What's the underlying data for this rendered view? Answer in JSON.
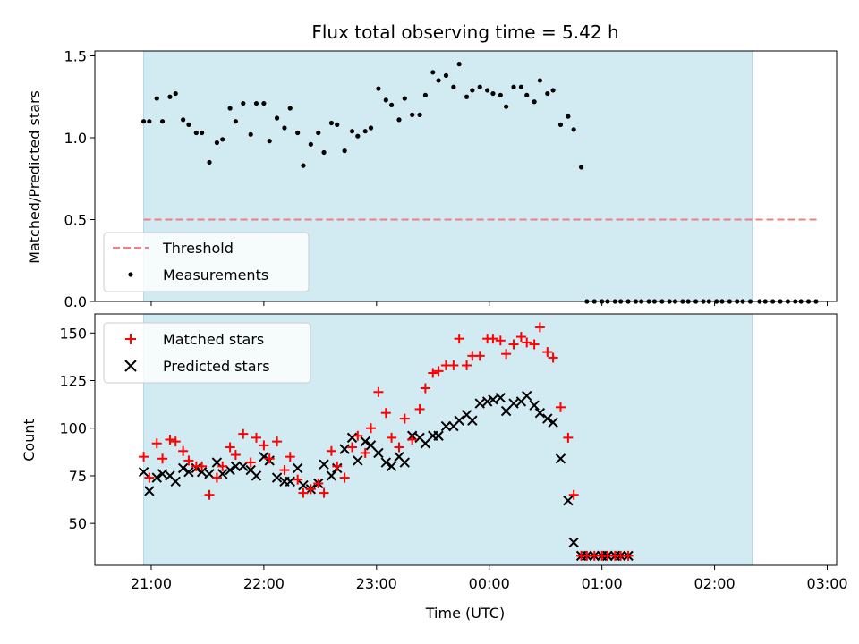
{
  "chart_data": {
    "title": "Flux total observing time = 5.42 h",
    "xlabel": "Time (UTC)",
    "x_unit": "UTC, 2-minute step series from 20:56",
    "xticks": [
      "21:00",
      "22:00",
      "23:00",
      "00:00",
      "01:00",
      "02:00",
      "03:00"
    ],
    "shaded_span": {
      "start": "20:56",
      "end": "02:20",
      "color": "#add8e6"
    },
    "panels": [
      {
        "type": "scatter",
        "ylabel": "Matched/Predicted stars",
        "ylim": [
          0,
          1.53
        ],
        "yticks": [
          "0.0",
          "0.5",
          "1.0",
          "1.5"
        ],
        "grid": false,
        "legend": "lower-left",
        "threshold": {
          "name": "Threshold",
          "value": 0.5,
          "x_start": "20:56",
          "x_end": "02:56",
          "color": "#f08080"
        },
        "series": [
          {
            "name": "Measurements",
            "color": "#000000",
            "x": [
              "20:56",
              "20:59",
              "21:03",
              "21:06",
              "21:10",
              "21:13",
              "21:17",
              "21:20",
              "21:24",
              "21:27",
              "21:31",
              "21:35",
              "21:38",
              "21:42",
              "21:45",
              "21:49",
              "21:53",
              "21:56",
              "22:00",
              "22:03",
              "22:07",
              "22:11",
              "22:14",
              "22:18",
              "22:21",
              "22:25",
              "22:29",
              "22:32",
              "22:36",
              "22:39",
              "22:43",
              "22:47",
              "22:50",
              "22:54",
              "22:57",
              "23:01",
              "23:05",
              "23:08",
              "23:12",
              "23:15",
              "23:19",
              "23:23",
              "23:26",
              "23:30",
              "23:33",
              "23:37",
              "23:41",
              "23:44",
              "23:48",
              "23:51",
              "23:55",
              "23:59",
              "00:02",
              "00:06",
              "00:09",
              "00:13",
              "00:17",
              "00:20",
              "00:24",
              "00:27",
              "00:31",
              "00:34",
              "00:38",
              "00:42",
              "00:45",
              "00:49",
              "00:52",
              "00:56",
              "01:00",
              "01:03",
              "01:07",
              "01:10",
              "01:14",
              "01:18",
              "01:21",
              "01:25",
              "01:28",
              "01:32",
              "01:36",
              "01:39",
              "01:43",
              "01:46",
              "01:50",
              "01:54",
              "01:57",
              "02:01",
              "02:04",
              "02:08",
              "02:12",
              "02:15",
              "02:19",
              "02:24",
              "02:27",
              "02:31",
              "02:35",
              "02:39",
              "02:43",
              "02:46",
              "02:50",
              "02:54"
            ],
            "y": [
              1.1,
              1.1,
              1.24,
              1.1,
              1.25,
              1.27,
              1.11,
              1.08,
              1.03,
              1.03,
              0.85,
              0.97,
              0.99,
              1.18,
              1.1,
              1.21,
              1.02,
              1.21,
              1.21,
              0.98,
              1.12,
              1.06,
              1.18,
              1.03,
              0.83,
              0.96,
              1.03,
              0.91,
              1.09,
              1.08,
              0.92,
              1.04,
              1.01,
              1.04,
              1.06,
              1.3,
              1.23,
              1.2,
              1.11,
              1.24,
              1.14,
              1.14,
              1.26,
              1.4,
              1.35,
              1.38,
              1.31,
              1.45,
              1.25,
              1.29,
              1.31,
              1.29,
              1.27,
              1.26,
              1.19,
              1.31,
              1.31,
              1.26,
              1.22,
              1.35,
              1.27,
              1.29,
              1.08,
              1.13,
              1.05,
              0.82,
              0,
              0,
              0,
              0,
              0,
              0,
              0,
              0,
              0,
              0,
              0,
              0,
              0,
              0,
              0,
              0,
              0,
              0,
              0,
              0,
              0,
              0,
              0,
              0,
              0,
              0,
              0,
              0,
              0,
              0,
              0,
              0,
              0,
              0
            ]
          }
        ]
      },
      {
        "type": "scatter",
        "ylabel": "Count",
        "ylim": [
          28,
          160
        ],
        "yticks": [
          "50",
          "75",
          "100",
          "125",
          "150"
        ],
        "grid": false,
        "legend": "upper-left",
        "series": [
          {
            "name": "Matched stars",
            "marker": "plus",
            "color": "#ff0000",
            "y": [
              85,
              74,
              92,
              84,
              94,
              93,
              88,
              83,
              80,
              80,
              65,
              74,
              80,
              90,
              86,
              97,
              82,
              95,
              91,
              84,
              93,
              78,
              85,
              73,
              66,
              68,
              71,
              66,
              88,
              80,
              74,
              90,
              96,
              87,
              100,
              119,
              108,
              95,
              90,
              105,
              94,
              110,
              121,
              129,
              130,
              133,
              133,
              147,
              133,
              138,
              138,
              147,
              147,
              146,
              139,
              144,
              148,
              145,
              144,
              153,
              140,
              137,
              111,
              95,
              65,
              33,
              33,
              33,
              33,
              33,
              33,
              33,
              33
            ]
          },
          {
            "name": "Predicted stars",
            "marker": "x",
            "color": "#000000",
            "y": [
              77,
              67,
              74,
              76,
              75,
              72,
              79,
              77,
              79,
              77,
              76,
              82,
              76,
              78,
              80,
              80,
              78,
              75,
              85,
              83,
              74,
              72,
              72,
              79,
              70,
              68,
              71,
              81,
              75,
              79,
              89,
              95,
              83,
              93,
              91,
              87,
              82,
              80,
              85,
              82,
              96,
              95,
              92,
              96,
              96,
              101,
              101,
              104,
              107,
              104,
              113,
              114,
              115,
              116,
              109,
              113,
              114,
              117,
              112,
              108,
              105,
              103,
              84,
              62,
              40,
              33,
              33,
              33,
              33,
              33,
              33,
              33,
              33
            ]
          }
        ]
      }
    ]
  }
}
